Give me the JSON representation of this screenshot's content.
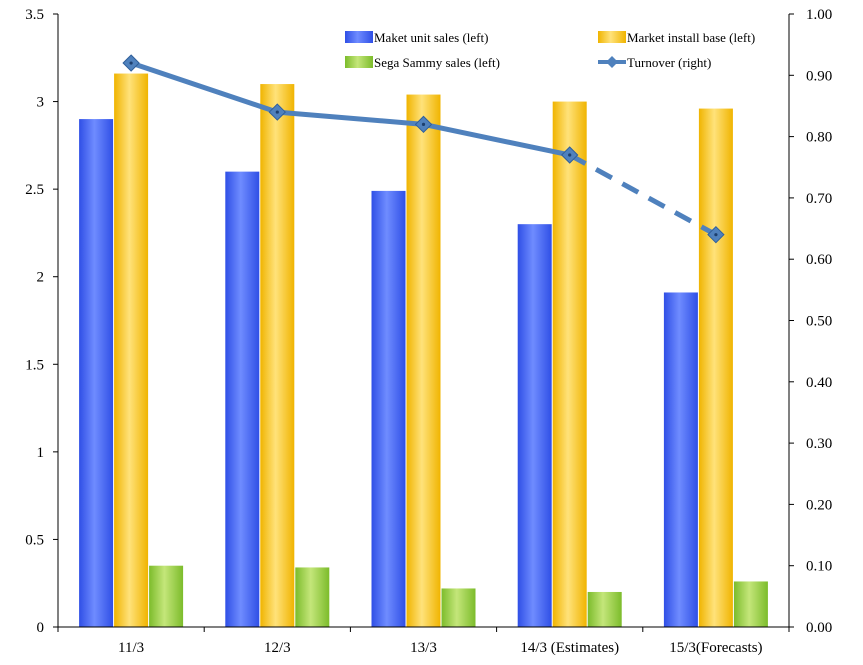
{
  "chart_data": {
    "type": "bar",
    "title": "",
    "categories": [
      "11/3",
      "12/3",
      "13/3",
      "14/3 (Estimates)",
      "15/3(Forecasts)"
    ],
    "series": [
      {
        "name": "Maket unit sales (left)",
        "axis": "left",
        "kind": "bar",
        "values": [
          2.9,
          2.6,
          2.49,
          2.3,
          1.91
        ],
        "color": "#4a6cf0"
      },
      {
        "name": "Market install base (left)",
        "axis": "left",
        "kind": "bar",
        "values": [
          3.16,
          3.1,
          3.04,
          3.0,
          2.96
        ],
        "color": "#f5c020"
      },
      {
        "name": "Sega Sammy sales (left)",
        "axis": "left",
        "kind": "bar",
        "values": [
          0.35,
          0.34,
          0.22,
          0.2,
          0.26
        ],
        "color": "#8cc63f"
      },
      {
        "name": "Turnover (right)",
        "axis": "right",
        "kind": "line",
        "values": [
          0.92,
          0.84,
          0.82,
          0.77,
          0.64
        ],
        "color": "#4f81bd",
        "dashed_from_index": 3
      }
    ],
    "y_left": {
      "min": 0,
      "max": 3.5,
      "ticks": [
        "0",
        "0.5",
        "1",
        "1.5",
        "2",
        "2.5",
        "3",
        "3.5"
      ]
    },
    "y_right": {
      "min": 0,
      "max": 1.0,
      "ticks": [
        "0.00",
        "0.10",
        "0.20",
        "0.30",
        "0.40",
        "0.50",
        "0.60",
        "0.70",
        "0.80",
        "0.90",
        "1.00"
      ]
    },
    "legend_position": "top-right",
    "grid": false
  }
}
